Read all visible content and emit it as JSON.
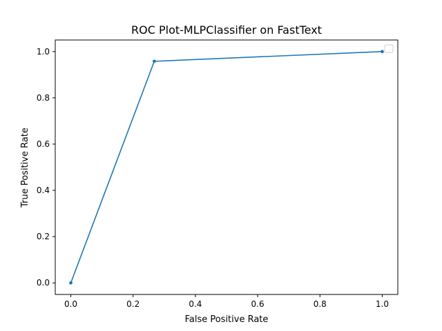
{
  "chart_data": {
    "type": "line",
    "title": "ROC Plot-MLPClassifier on FastText",
    "xlabel": "False Positive Rate",
    "ylabel": "True Positive Rate",
    "xlim": [
      -0.05,
      1.05
    ],
    "ylim": [
      -0.05,
      1.05
    ],
    "xticks": [
      0.0,
      0.2,
      0.4,
      0.6,
      0.8,
      1.0
    ],
    "yticks": [
      0.0,
      0.2,
      0.4,
      0.6,
      0.8,
      1.0
    ],
    "xtick_labels": [
      "0.0",
      "0.2",
      "0.4",
      "0.6",
      "0.8",
      "1.0"
    ],
    "ytick_labels": [
      "0.0",
      "0.2",
      "0.4",
      "0.6",
      "0.8",
      "1.0"
    ],
    "grid": false,
    "legend": {
      "placement": "top-right",
      "entries": []
    },
    "series": [
      {
        "color": "#1f77b4",
        "marker": "dot",
        "x": [
          0.0,
          0.268,
          1.0
        ],
        "y": [
          0.0,
          0.958,
          1.0
        ]
      }
    ]
  }
}
